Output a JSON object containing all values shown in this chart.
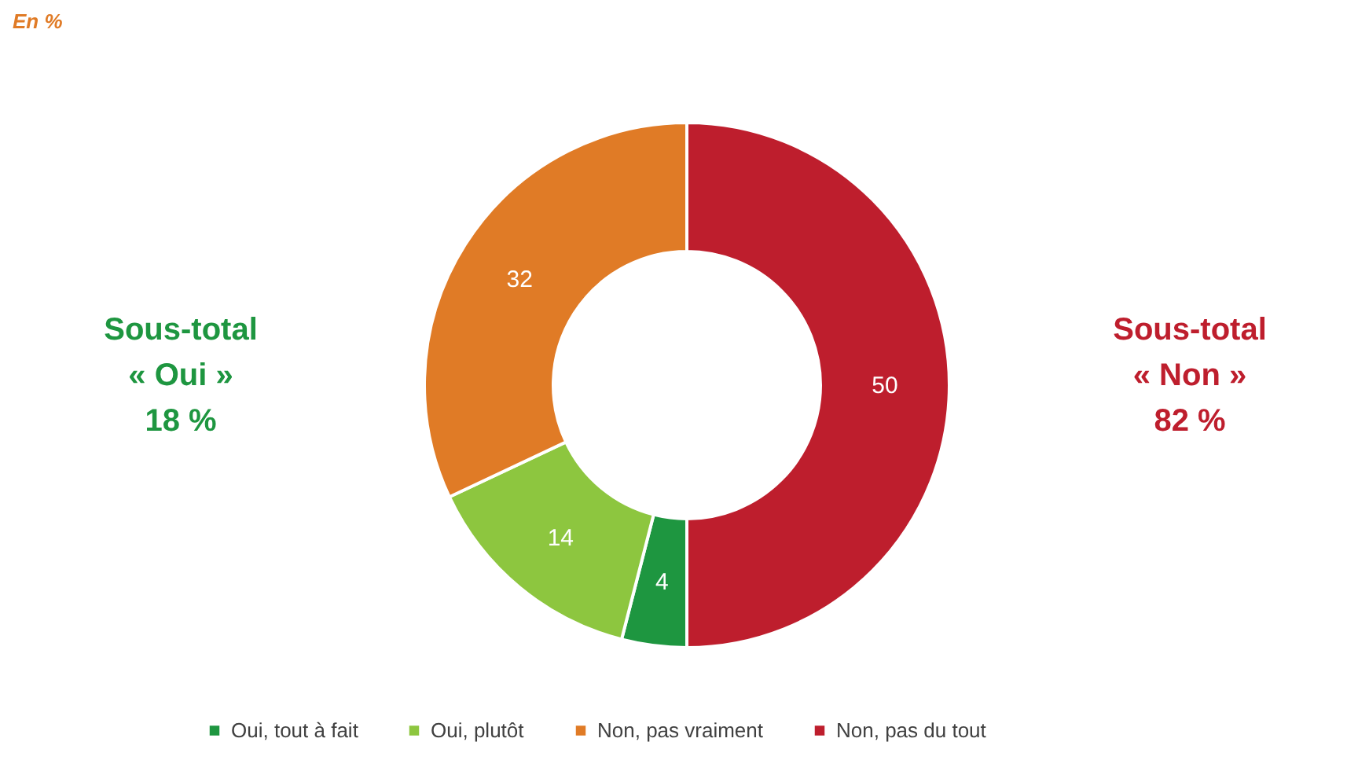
{
  "chart_data": {
    "type": "donut",
    "categories": [
      "Oui, tout à fait",
      "Oui, plutôt",
      "Non, pas vraiment",
      "Non, pas du tout"
    ],
    "values": [
      4,
      14,
      32,
      50
    ],
    "colors": [
      "#1e9640",
      "#8dc63f",
      "#e07b26",
      "#be1e2d"
    ],
    "data_labels": true,
    "legend": "bottom",
    "annotations": [
      "En %",
      "Sous-total\n« Oui »\n18 %",
      "Sous-total\n« Non »\n82 %"
    ]
  }
}
